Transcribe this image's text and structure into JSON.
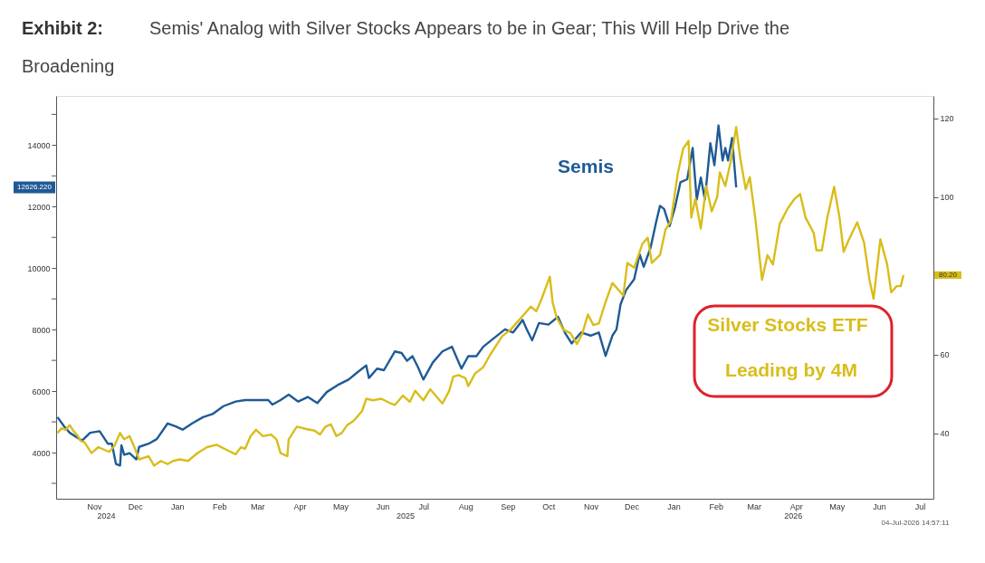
{
  "chart_data": {
    "type": "line",
    "title": "Exhibit 2:",
    "subtitle": "Semis' Analog with Silver Stocks Appears to be in Gear; This Will Help Drive the Broadening",
    "xlim": [
      "2024-10-18",
      "2026-07-25"
    ],
    "xticks": [
      {
        "value": "2024-11-15",
        "label": "Nov"
      },
      {
        "value": "2024-12-15",
        "label": "Dec"
      },
      {
        "value": "2025-01-15",
        "label": "Jan"
      },
      {
        "value": "2025-02-15",
        "label": "Feb"
      },
      {
        "value": "2025-03-15",
        "label": "Mar"
      },
      {
        "value": "2025-04-15",
        "label": "Apr"
      },
      {
        "value": "2025-05-15",
        "label": "May"
      },
      {
        "value": "2025-06-15",
        "label": "Jun"
      },
      {
        "value": "2025-07-15",
        "label": "Jul"
      },
      {
        "value": "2025-08-15",
        "label": "Aug"
      },
      {
        "value": "2025-09-15",
        "label": "Sep"
      },
      {
        "value": "2025-10-15",
        "label": "Oct"
      },
      {
        "value": "2025-11-15",
        "label": "Nov"
      },
      {
        "value": "2025-12-15",
        "label": "Dec"
      },
      {
        "value": "2026-01-15",
        "label": "Jan"
      },
      {
        "value": "2026-02-15",
        "label": "Feb"
      },
      {
        "value": "2026-03-15",
        "label": "Mar"
      },
      {
        "value": "2026-04-15",
        "label": "Apr"
      },
      {
        "value": "2026-05-15",
        "label": "May"
      },
      {
        "value": "2026-06-15",
        "label": "Jun"
      },
      {
        "value": "2026-07-15",
        "label": "Jul"
      }
    ],
    "ylim": [
      2500,
      15600
    ],
    "yticks": [
      {
        "value": 3000,
        "label": null
      },
      4000,
      {
        "value": 5000,
        "label": null
      },
      6000,
      {
        "value": 7000,
        "label": null
      },
      8000,
      {
        "value": 9000,
        "label": null
      },
      10000,
      {
        "value": 11000,
        "label": null
      },
      12000,
      {
        "value": 13000,
        "label": null
      },
      14000,
      {
        "value": 15000,
        "label": null
      }
    ],
    "y2lim": [
      23.4,
      125.7
    ],
    "y2ticks": [
      40,
      60,
      100,
      120
    ],
    "line_style": "solid",
    "series": [
      {
        "name": "Semis",
        "color": "#1f5a96",
        "x": [
          "2024-10-19",
          "2024-10-24",
          "2024-10-28",
          "2024-11-06",
          "2024-11-12",
          "2024-11-19",
          "2024-11-25",
          "2024-11-28",
          "2024-12-01",
          "2024-12-04",
          "2024-12-05",
          "2024-12-07",
          "2024-12-11",
          "2024-12-16",
          "2024-12-18",
          "2024-12-25",
          "2024-12-31",
          "2025-01-08",
          "2025-01-14",
          "2025-01-19",
          "2025-01-26",
          "2025-02-03",
          "2025-02-10",
          "2025-02-18",
          "2025-02-27",
          "2025-03-06",
          "2025-03-15",
          "2025-03-23",
          "2025-03-26",
          "2025-04-01",
          "2025-04-07",
          "2025-04-14",
          "2025-04-21",
          "2025-04-28",
          "2025-05-05",
          "2025-05-14",
          "2025-05-21",
          "2025-05-28",
          "2025-06-03",
          "2025-06-05",
          "2025-06-11",
          "2025-06-16",
          "2025-06-24",
          "2025-06-29",
          "2025-07-03",
          "2025-07-07",
          "2025-07-11",
          "2025-07-15",
          "2025-07-22",
          "2025-07-29",
          "2025-08-05",
          "2025-08-12",
          "2025-08-17",
          "2025-08-23",
          "2025-08-28",
          "2025-09-03",
          "2025-09-13",
          "2025-09-19",
          "2025-09-26",
          "2025-09-29",
          "2025-10-03",
          "2025-10-08",
          "2025-10-15",
          "2025-10-22",
          "2025-10-27",
          "2025-11-01",
          "2025-11-08",
          "2025-11-15",
          "2025-11-21",
          "2025-11-26",
          "2025-12-01",
          "2025-12-04",
          "2025-12-07",
          "2025-12-11",
          "2025-12-17",
          "2025-12-21",
          "2025-12-24",
          "2025-12-29",
          "2026-01-02",
          "2026-01-05",
          "2026-01-08",
          "2026-01-12",
          "2026-01-16",
          "2026-01-20",
          "2026-01-25",
          "2026-01-29",
          "2026-02-01",
          "2026-02-04",
          "2026-02-07",
          "2026-02-11",
          "2026-02-14",
          "2026-02-17",
          "2026-02-20",
          "2026-02-22",
          "2026-02-24",
          "2026-02-27",
          "2026-03-02"
        ],
        "values": [
          5154,
          4850,
          4645,
          4390,
          4645,
          4695,
          4290,
          4290,
          3630,
          3580,
          4240,
          3930,
          3980,
          3780,
          4185,
          4290,
          4440,
          4950,
          4850,
          4746,
          4950,
          5154,
          5255,
          5510,
          5660,
          5710,
          5710,
          5710,
          5560,
          5710,
          5885,
          5660,
          5810,
          5610,
          5970,
          6222,
          6375,
          6630,
          6833,
          6426,
          6731,
          6680,
          7290,
          7240,
          6986,
          7138,
          6782,
          6375,
          6935,
          7290,
          7443,
          6731,
          7138,
          7138,
          7443,
          7654,
          8010,
          7908,
          8315,
          8010,
          7654,
          8213,
          8162,
          8416,
          7908,
          7552,
          7908,
          7806,
          7908,
          7145,
          7806,
          8010,
          8823,
          9281,
          9637,
          10450,
          10044,
          10654,
          11468,
          12027,
          11925,
          11366,
          11976,
          12790,
          12892,
          13908,
          12230,
          12942,
          12230,
          14061,
          13349,
          14641,
          13501,
          13908,
          13501,
          14234,
          12626.22
        ]
      },
      {
        "name": "Silver Stocks ETF",
        "color": "#d9bd1a",
        "axis": "y2",
        "x": [
          "2024-10-19",
          "2024-10-22",
          "2024-10-25",
          "2024-10-28",
          "2024-10-31",
          "2024-11-03",
          "2024-11-05",
          "2024-11-08",
          "2024-11-13",
          "2024-11-18",
          "2024-11-26",
          "2024-11-30",
          "2024-12-04",
          "2024-12-07",
          "2024-12-11",
          "2024-12-15",
          "2024-12-18",
          "2024-12-25",
          "2024-12-29",
          "2025-01-03",
          "2025-01-08",
          "2025-01-12",
          "2025-01-17",
          "2025-01-23",
          "2025-01-30",
          "2025-02-06",
          "2025-02-13",
          "2025-02-21",
          "2025-02-27",
          "2025-03-03",
          "2025-03-06",
          "2025-03-10",
          "2025-03-14",
          "2025-03-19",
          "2025-03-25",
          "2025-03-29",
          "2025-04-01",
          "2025-04-06",
          "2025-04-07",
          "2025-04-13",
          "2025-04-20",
          "2025-04-26",
          "2025-04-30",
          "2025-05-04",
          "2025-05-08",
          "2025-05-12",
          "2025-05-16",
          "2025-05-20",
          "2025-05-25",
          "2025-05-31",
          "2025-06-03",
          "2025-06-08",
          "2025-06-14",
          "2025-06-21",
          "2025-06-24",
          "2025-06-30",
          "2025-07-05",
          "2025-07-09",
          "2025-07-15",
          "2025-07-20",
          "2025-07-29",
          "2025-08-03",
          "2025-08-06",
          "2025-08-10",
          "2025-08-15",
          "2025-08-17",
          "2025-08-22",
          "2025-08-28",
          "2025-09-02",
          "2025-09-11",
          "2025-09-17",
          "2025-09-25",
          "2025-10-02",
          "2025-10-06",
          "2025-10-10",
          "2025-10-16",
          "2025-10-18",
          "2025-10-21",
          "2025-10-26",
          "2025-10-31",
          "2025-11-05",
          "2025-11-09",
          "2025-11-13",
          "2025-11-17",
          "2025-11-21",
          "2025-11-26",
          "2025-12-01",
          "2025-12-06",
          "2025-12-09",
          "2025-12-12",
          "2025-12-17",
          "2025-12-23",
          "2025-12-27",
          "2025-12-30",
          "2026-01-05",
          "2026-01-09",
          "2026-01-13",
          "2026-01-18",
          "2026-01-22",
          "2026-01-26",
          "2026-01-28",
          "2026-01-31",
          "2026-02-04",
          "2026-02-08",
          "2026-02-12",
          "2026-02-16",
          "2026-02-18",
          "2026-02-22",
          "2026-02-26",
          "2026-03-02",
          "2026-03-05",
          "2026-03-09",
          "2026-03-12",
          "2026-03-16",
          "2026-03-21",
          "2026-03-25",
          "2026-03-29",
          "2026-04-03",
          "2026-04-09",
          "2026-04-14",
          "2026-04-18",
          "2026-04-22",
          "2026-04-28",
          "2026-04-30",
          "2026-05-04",
          "2026-05-08",
          "2026-05-13",
          "2026-05-17",
          "2026-05-20",
          "2026-05-24",
          "2026-05-30",
          "2026-06-04",
          "2026-06-08",
          "2026-06-11",
          "2026-06-16",
          "2026-06-21",
          "2026-06-24",
          "2026-06-28",
          "2026-07-01",
          "2026-07-03"
        ],
        "values": [
          40.1,
          41.3,
          40.9,
          42.1,
          40.5,
          39.3,
          38.1,
          37.7,
          35.0,
          36.5,
          35.3,
          36.9,
          40.1,
          38.5,
          39.3,
          36.1,
          33.4,
          34.2,
          31.8,
          33.0,
          32.2,
          33.0,
          33.4,
          33.0,
          35.0,
          36.5,
          37.1,
          35.7,
          34.7,
          36.5,
          36.1,
          39.3,
          40.9,
          39.3,
          39.7,
          38.5,
          35.0,
          34.2,
          38.5,
          41.7,
          41.1,
          40.7,
          39.7,
          41.7,
          42.3,
          39.3,
          40.1,
          42.1,
          43.3,
          45.7,
          48.8,
          48.4,
          48.8,
          47.6,
          47.2,
          49.6,
          48.0,
          50.8,
          48.4,
          51.2,
          47.6,
          50.8,
          54.4,
          54.8,
          54.0,
          52.0,
          55.2,
          56.8,
          59.9,
          64.7,
          66.3,
          69.4,
          72.2,
          71.0,
          74.2,
          79.8,
          73.4,
          69.4,
          66.3,
          65.5,
          62.7,
          65.5,
          70.2,
          67.5,
          67.9,
          73.4,
          78.2,
          76.2,
          75.0,
          83.3,
          82.1,
          88.1,
          89.7,
          83.3,
          85.3,
          91.7,
          94.0,
          105.9,
          112.3,
          114.3,
          94.8,
          99.6,
          92.0,
          102.8,
          96.4,
          100.0,
          106.3,
          102.8,
          109.1,
          117.8,
          109.9,
          102.0,
          105.1,
          94.8,
          79.0,
          85.3,
          82.9,
          93.2,
          97.2,
          99.6,
          100.8,
          94.8,
          90.9,
          86.5,
          86.5,
          94.8,
          102.6,
          94.8,
          86.1,
          89.3,
          93.6,
          88.5,
          79.0,
          74.2,
          89.3,
          82.9,
          75.8,
          77.4,
          77.4,
          80.2
        ]
      }
    ],
    "annotations": [
      "12626.220",
      "80.20",
      "Leading by 4M",
      "2024",
      "2025",
      "2026",
      "04-Jul-2026 14:57:11"
    ]
  }
}
